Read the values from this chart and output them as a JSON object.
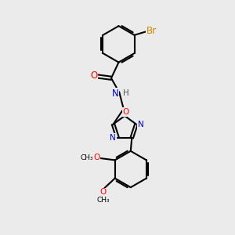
{
  "bg_color": "#ebebeb",
  "bond_color": "#000000",
  "bond_width": 1.5,
  "atom_colors": {
    "N": "#0000cc",
    "O": "#ff0000",
    "Br": "#cc8800",
    "H": "#555555"
  },
  "font_size": 8.5
}
